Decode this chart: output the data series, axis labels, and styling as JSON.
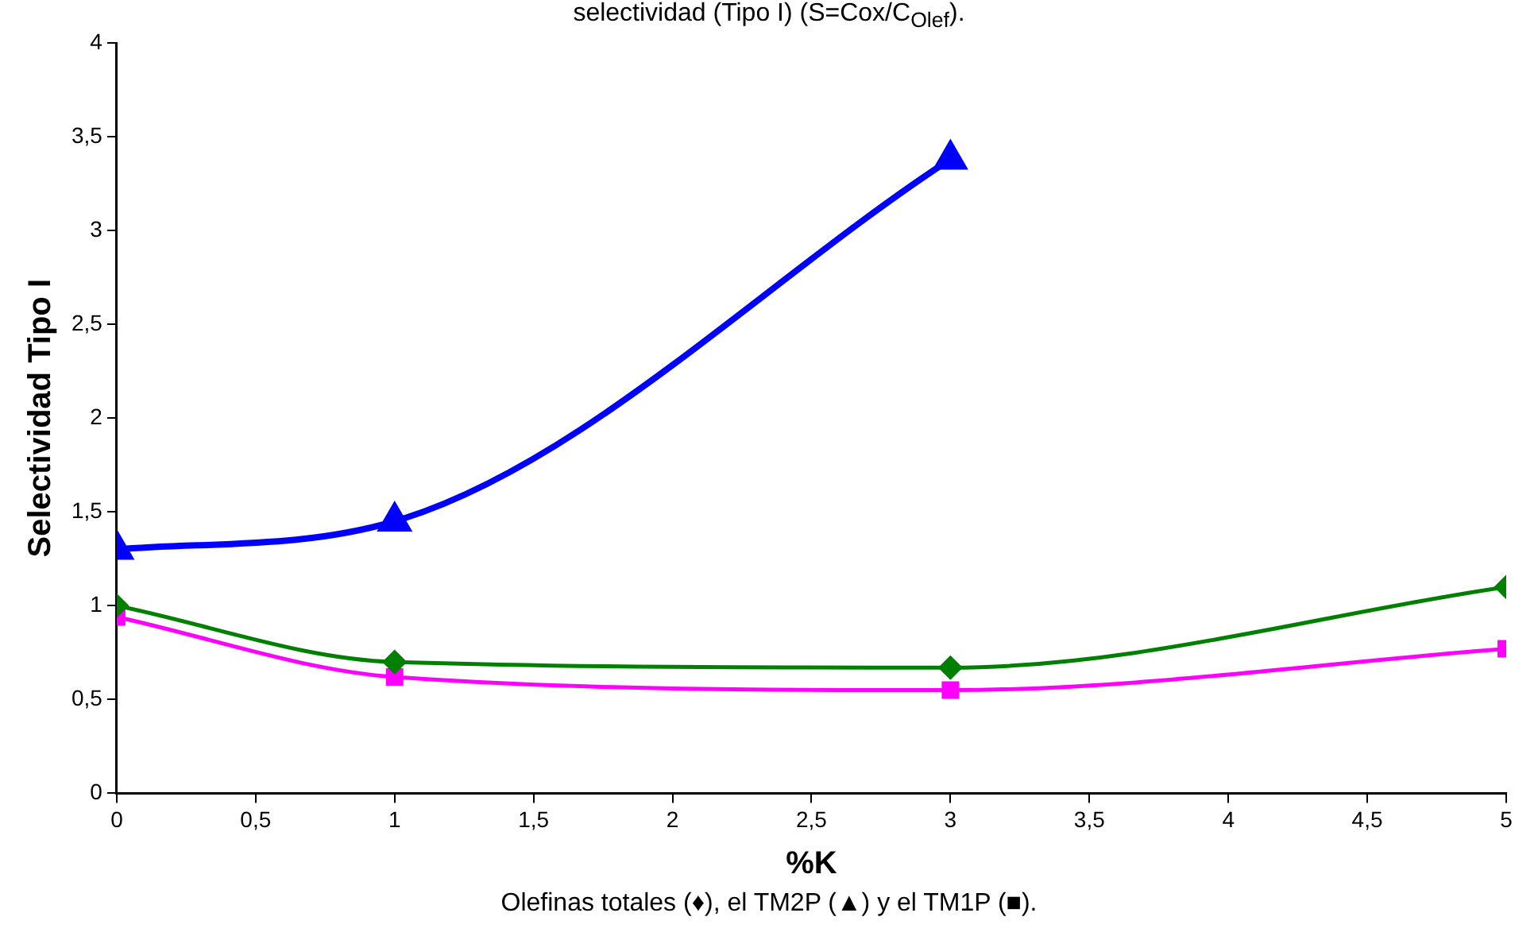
{
  "chart_data": {
    "type": "line",
    "title": "selectividad (Tipo I) (S=Cox/C$_{Olef}$).",
    "xlabel": "%K",
    "ylabel": "Selectividad Tipo I",
    "x": [
      0,
      1,
      3,
      5
    ],
    "series": [
      {
        "color": "#008000",
        "marker": "diamond",
        "values": [
          1.0,
          0.7,
          0.67,
          1.1
        ]
      },
      {
        "color": "#0000ff",
        "marker": "triangle",
        "x": [
          0,
          1,
          3
        ],
        "values": [
          1.3,
          1.45,
          3.38
        ]
      },
      {
        "color": "#ff00ff",
        "marker": "square",
        "values": [
          0.94,
          0.62,
          0.55,
          0.77
        ]
      }
    ],
    "xlim": [
      0,
      5
    ],
    "xticks": [
      0,
      {
        "value": 0.5,
        "label": "0,5"
      },
      1,
      {
        "value": 1.5,
        "label": "1,5"
      },
      2,
      {
        "value": 2.5,
        "label": "2,5"
      },
      3,
      {
        "value": 3.5,
        "label": "3,5"
      },
      4,
      {
        "value": 4.5,
        "label": "4,5"
      },
      5
    ],
    "ylim": [
      0,
      4
    ],
    "yticks": [
      0,
      {
        "value": 0.5,
        "label": "0,5"
      },
      1,
      {
        "value": 1.5,
        "label": "1,5"
      },
      2,
      {
        "value": 2.5,
        "label": "2,5"
      },
      3,
      {
        "value": 3.5,
        "label": "3,5"
      },
      4
    ],
    "grid": false,
    "legend": false,
    "annotations": [
      "Olefinas totales (♦), el TM2P (▲) y el TM1P (■)."
    ]
  }
}
